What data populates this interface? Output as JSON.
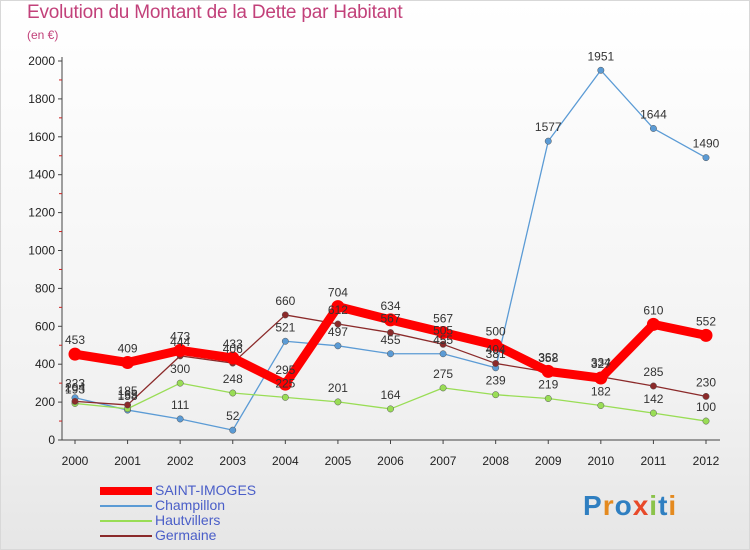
{
  "header": {
    "title": "Evolution du Montant de la Dette par Habitant",
    "subtitle": "(en €)"
  },
  "logo": {
    "text": "Proxiti"
  },
  "chart_data": {
    "type": "line",
    "title": "Evolution du Montant de la Dette par Habitant",
    "subtitle": "(en €)",
    "xlabel": "",
    "ylabel": "",
    "categories": [
      "2000",
      "2001",
      "2002",
      "2003",
      "2004",
      "2005",
      "2006",
      "2007",
      "2008",
      "2009",
      "2010",
      "2011",
      "2012"
    ],
    "ylim": [
      0,
      2000
    ],
    "yticks": [
      0,
      200,
      400,
      600,
      800,
      1000,
      1200,
      1400,
      1600,
      1800,
      2000
    ],
    "grid": false,
    "legend_position": "bottom-left",
    "series": [
      {
        "name": "SAINT-IMOGES",
        "color": "#ff0000",
        "values": [
          453,
          409,
          473,
          433,
          295,
          704,
          634,
          567,
          500,
          362,
          327,
          610,
          552
        ]
      },
      {
        "name": "Champillon",
        "color": "#5b9bd5",
        "values": [
          223,
          158,
          111,
          52,
          521,
          497,
          455,
          455,
          381,
          1577,
          1951,
          1644,
          1490
        ]
      },
      {
        "name": "Hautvillers",
        "color": "#99dd55",
        "values": [
          193,
          165,
          300,
          248,
          225,
          201,
          164,
          275,
          239,
          219,
          182,
          142,
          100
        ]
      },
      {
        "name": "Germaine",
        "color": "#8b2a2a",
        "values": [
          204,
          185,
          444,
          406,
          660,
          612,
          567,
          505,
          404,
          358,
          334,
          285,
          230
        ]
      }
    ]
  }
}
